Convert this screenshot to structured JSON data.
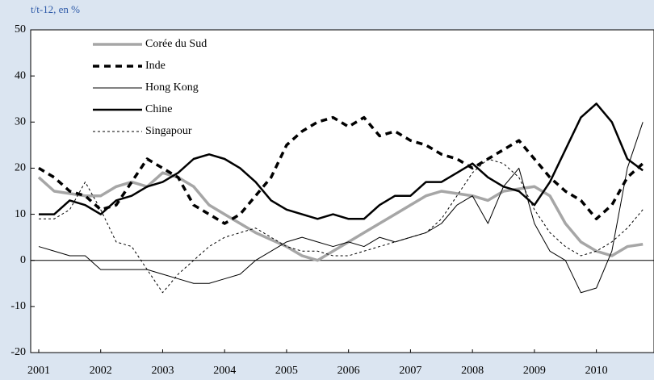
{
  "chart_data": {
    "type": "line",
    "title": "t/t-12, en %",
    "x": [
      2001,
      2001.25,
      2001.5,
      2001.75,
      2002,
      2002.25,
      2002.5,
      2002.75,
      2003,
      2003.25,
      2003.5,
      2003.75,
      2004,
      2004.25,
      2004.5,
      2004.75,
      2005,
      2005.25,
      2005.5,
      2005.75,
      2006,
      2006.25,
      2006.5,
      2006.75,
      2007,
      2007.25,
      2007.5,
      2007.75,
      2008,
      2008.25,
      2008.5,
      2008.75,
      2009,
      2009.25,
      2009.5,
      2009.75,
      2010,
      2010.25,
      2010.5,
      2010.75
    ],
    "xlim": [
      2000.87,
      2010.93
    ],
    "xticks": [
      2001,
      2002,
      2003,
      2004,
      2005,
      2006,
      2007,
      2008,
      2009,
      2010
    ],
    "ylim": [
      -20,
      50
    ],
    "yticks": [
      -20,
      -10,
      0,
      10,
      20,
      30,
      40,
      50
    ],
    "series": [
      {
        "name": "Corée du Sud",
        "color": "#a6a6a6",
        "width": 3.5,
        "dash": "none",
        "values": [
          18,
          15,
          14.5,
          14,
          14,
          16,
          17,
          16,
          19,
          18,
          16,
          12,
          10,
          8,
          6,
          4.5,
          3,
          1,
          0,
          2,
          4,
          6,
          8,
          10,
          12,
          14,
          15,
          14.5,
          14,
          13,
          15,
          15.5,
          16,
          14,
          8,
          4,
          2,
          1,
          3,
          3.5
        ]
      },
      {
        "name": "Inde",
        "color": "#000000",
        "width": 3.5,
        "dash": "8 6",
        "values": [
          20,
          18,
          15,
          14,
          11,
          12,
          17,
          22,
          20,
          18,
          12,
          10,
          8,
          10,
          14,
          18,
          25,
          28,
          30,
          31,
          29,
          31,
          27,
          28,
          26,
          25,
          23,
          22,
          20,
          22,
          24,
          26,
          22,
          18,
          15,
          13,
          9,
          12,
          18,
          21
        ]
      },
      {
        "name": "Hong Kong",
        "color": "#000000",
        "width": 1,
        "dash": "none",
        "values": [
          3,
          2,
          1,
          1,
          -2,
          -2,
          -2,
          -2,
          -3,
          -4,
          -5,
          -5,
          -4,
          -3,
          0,
          2,
          4,
          5,
          4,
          3,
          4,
          3,
          5,
          4,
          5,
          6,
          8,
          12,
          14,
          8,
          16,
          20,
          8,
          2,
          0,
          -7,
          -6,
          2,
          20,
          30
        ]
      },
      {
        "name": "Chine",
        "color": "#000000",
        "width": 2.5,
        "dash": "none",
        "values": [
          10,
          10,
          13,
          12,
          10,
          13,
          14,
          16,
          17,
          19,
          22,
          23,
          22,
          20,
          17,
          13,
          11,
          10,
          9,
          10,
          9,
          9,
          12,
          14,
          14,
          17,
          17,
          19,
          21,
          18,
          16,
          15,
          12,
          17,
          24,
          31,
          34,
          30,
          22,
          19.5
        ]
      },
      {
        "name": "Singapour",
        "color": "#000000",
        "width": 1,
        "dash": "3 3",
        "values": [
          9,
          9,
          11,
          17,
          11,
          4,
          3,
          -2,
          -7,
          -3,
          0,
          3,
          5,
          6,
          7,
          5,
          3,
          2,
          2,
          1,
          1,
          2,
          3,
          4,
          5,
          6,
          9,
          14,
          19,
          22,
          21,
          18,
          11,
          6,
          3,
          1,
          2,
          4,
          7,
          11
        ]
      }
    ]
  }
}
